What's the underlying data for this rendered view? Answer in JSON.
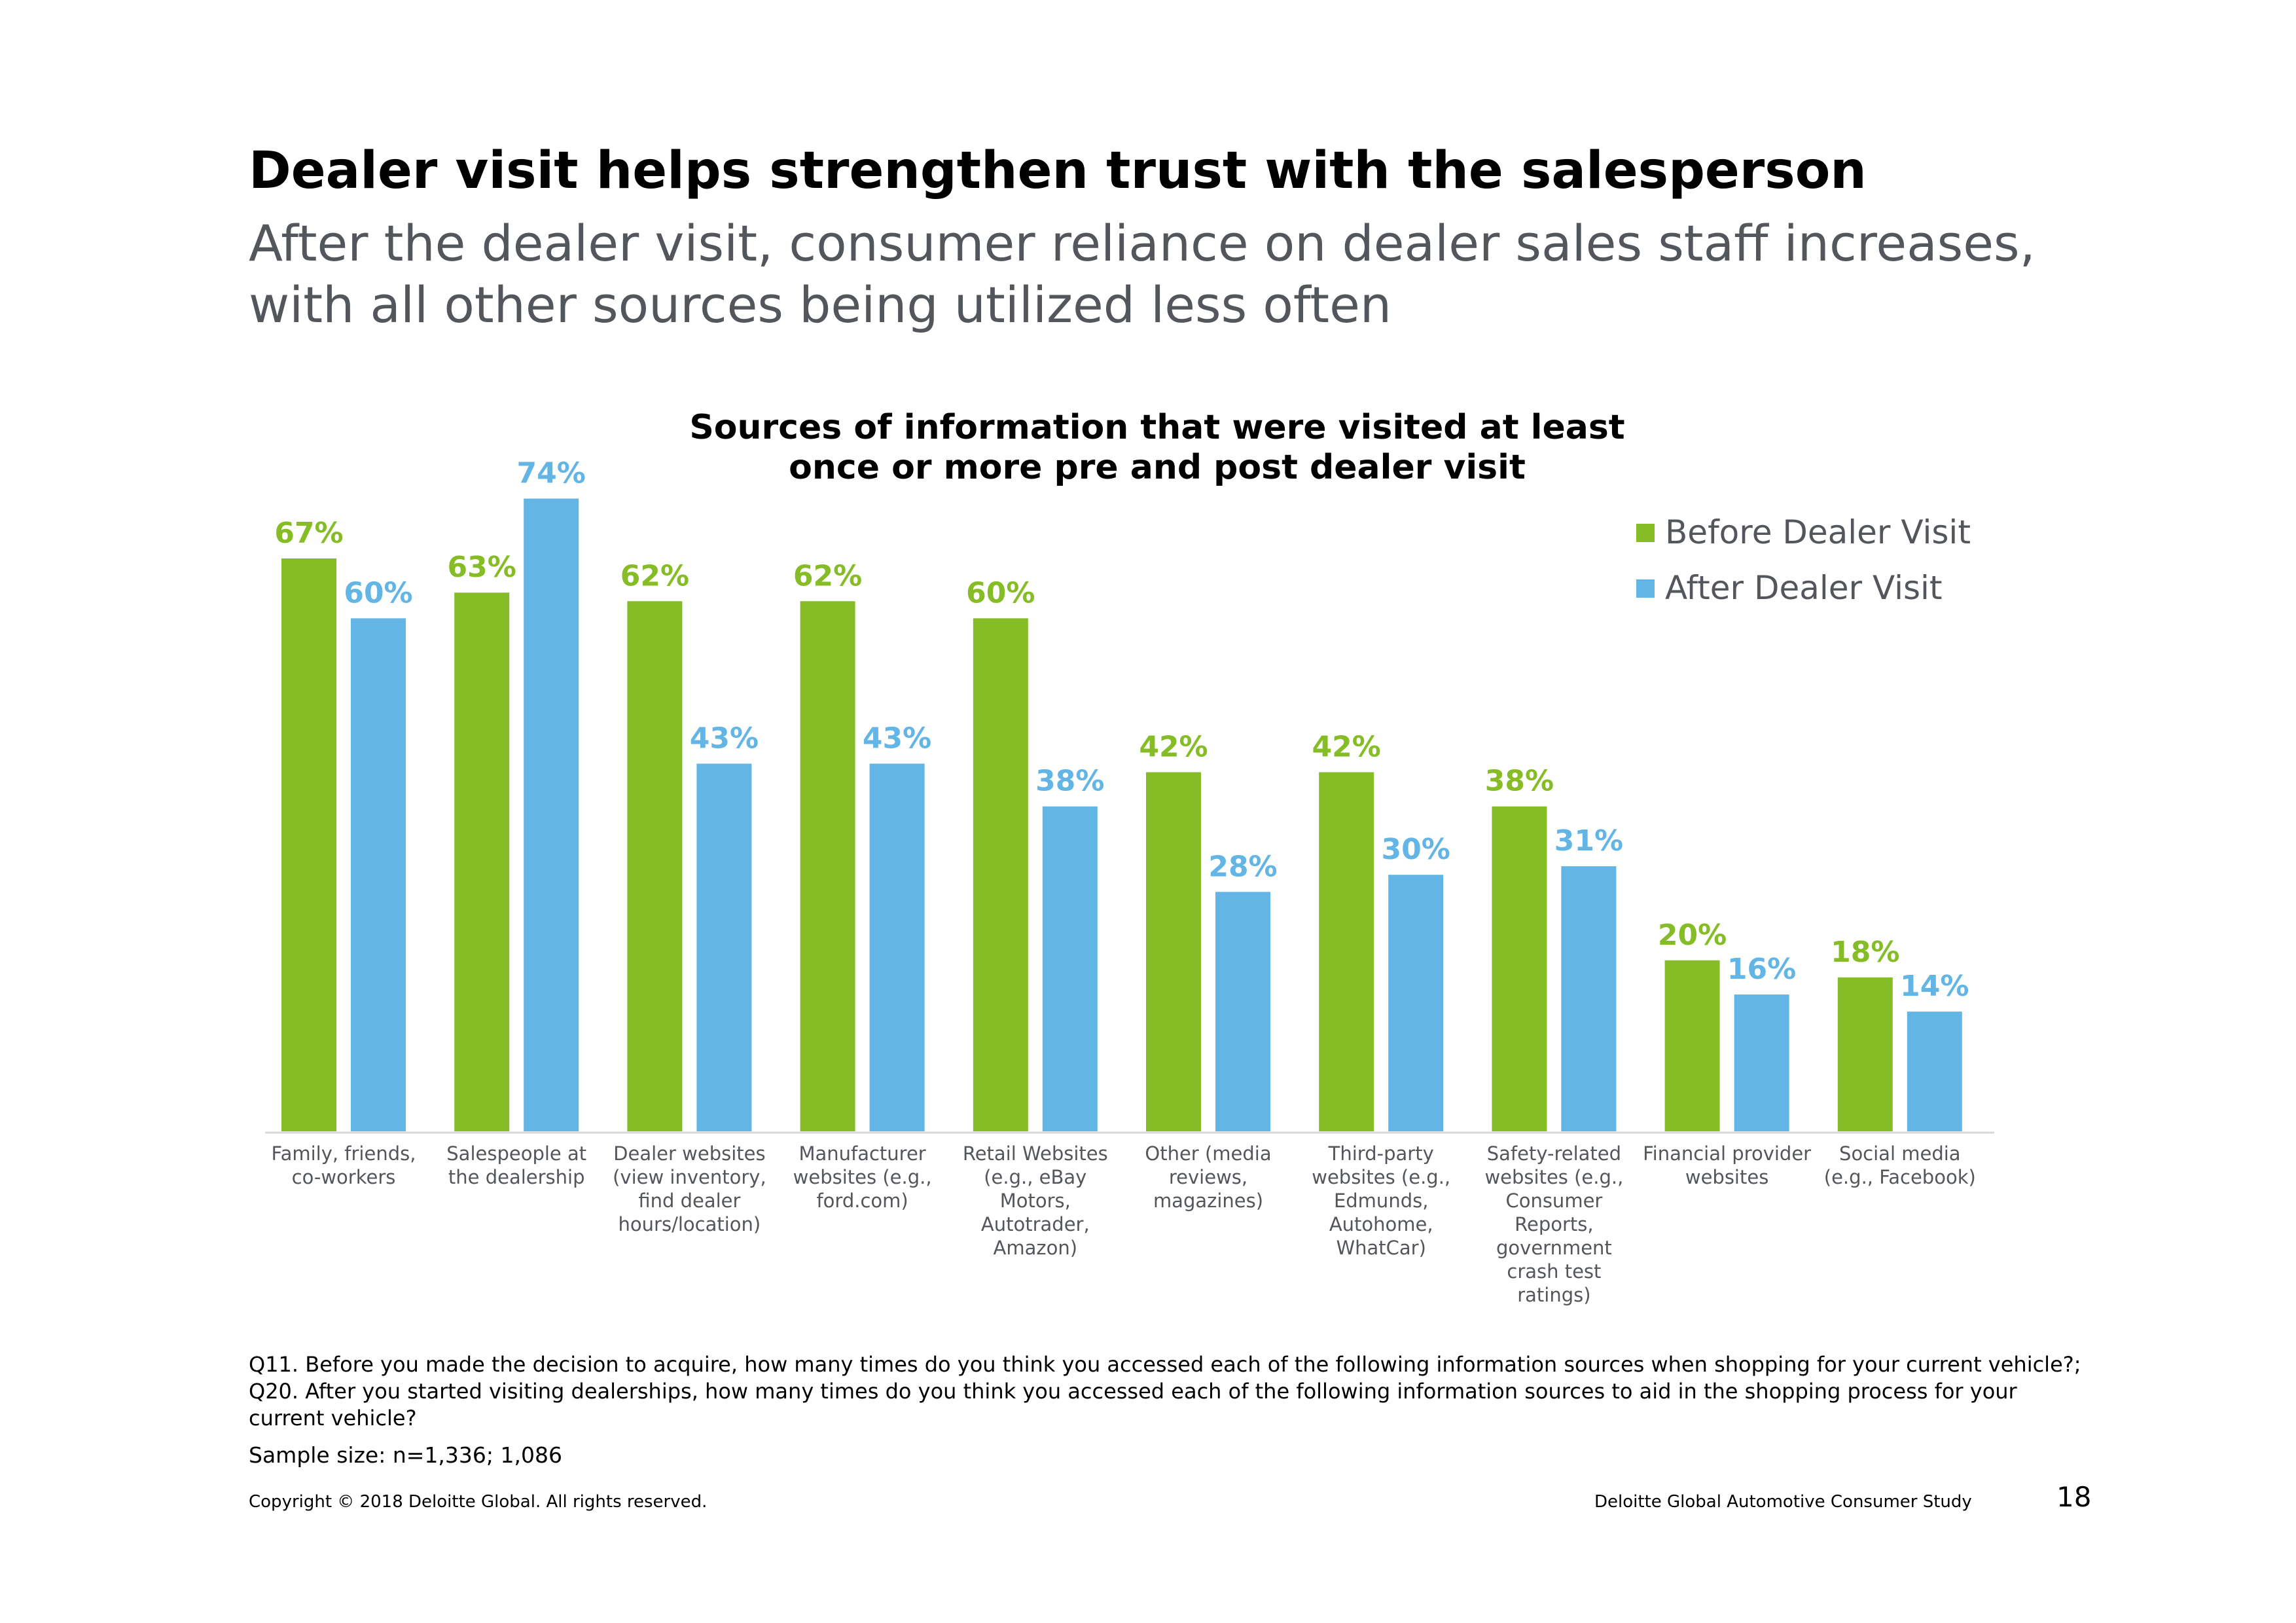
{
  "header": {
    "title": "Dealer visit helps strengthen trust with the salesperson",
    "subtitle": "After the dealer visit, consumer reliance on dealer sales staff increases, with all other sources being utilized less often"
  },
  "colors": {
    "before": "#86BC25",
    "after": "#62B5E5",
    "axis": "#D9D9D9",
    "category_text": "#53565A"
  },
  "chart_data": {
    "type": "bar",
    "title": "Sources of information that were visited at least once or more pre and post dealer visit",
    "title_lines": [
      "Sources of information that were visited at least",
      "once or more pre and post dealer visit"
    ],
    "categories": [
      "Family, friends, co-workers",
      "Salespeople at the dealership",
      "Dealer websites (view inventory, find dealer hours/location)",
      "Manufacturer websites (e.g., ford.com)",
      "Retail Websites (e.g., eBay Motors, Autotrader, Amazon)",
      "Other (media reviews, magazines)",
      "Third-party websites (e.g., Edmunds, Autohome, WhatCar)",
      "Safety-related websites (e.g., Consumer Reports, government crash test ratings)",
      "Financial provider websites",
      "Social media (e.g., Facebook)"
    ],
    "category_lines": [
      [
        "Family, friends,",
        "co-workers"
      ],
      [
        "Salespeople at",
        "the dealership"
      ],
      [
        "Dealer websites",
        "(view inventory,",
        "find dealer",
        "hours/location)"
      ],
      [
        "Manufacturer",
        "websites (e.g.,",
        "ford.com)"
      ],
      [
        "Retail Websites",
        "(e.g., eBay",
        "Motors,",
        "Autotrader,",
        "Amazon)"
      ],
      [
        "Other (media",
        "reviews,",
        "magazines)"
      ],
      [
        "Third-party",
        "websites (e.g.,",
        "Edmunds,",
        "Autohome,",
        "WhatCar)"
      ],
      [
        "Safety-related",
        "websites (e.g.,",
        "Consumer",
        "Reports,",
        "government",
        "crash test",
        "ratings)"
      ],
      [
        "Financial provider",
        "websites"
      ],
      [
        "Social media",
        "(e.g., Facebook)"
      ]
    ],
    "series": [
      {
        "name": "Before Dealer Visit",
        "values": [
          67,
          63,
          62,
          62,
          60,
          42,
          42,
          38,
          20,
          18
        ],
        "labels": [
          "67%",
          "63%",
          "62%",
          "62%",
          "60%",
          "42%",
          "42%",
          "38%",
          "20%",
          "18%"
        ]
      },
      {
        "name": "After Dealer Visit",
        "values": [
          60,
          74,
          43,
          43,
          38,
          28,
          30,
          31,
          16,
          14
        ],
        "labels": [
          "60%",
          "74%",
          "43%",
          "43%",
          "38%",
          "28%",
          "30%",
          "31%",
          "16%",
          "14%"
        ]
      }
    ],
    "unit": "%",
    "ylim": [
      0,
      100
    ],
    "grid": false,
    "legend_position": "top-right"
  },
  "footer": {
    "question_note": "Q11. Before you made the decision to acquire, how many times do you think you accessed each of the following information sources when shopping for your current vehicle?; Q20. After you started visiting dealerships, how many times do you think you accessed each of the following information sources to aid in the shopping process for your current vehicle?",
    "sample_size": "Sample size: n=1,336; 1,086",
    "copyright": "Copyright © 2018 Deloitte Global. All rights reserved.",
    "study_name": "Deloitte Global Automotive Consumer Study",
    "page_number": "18"
  }
}
